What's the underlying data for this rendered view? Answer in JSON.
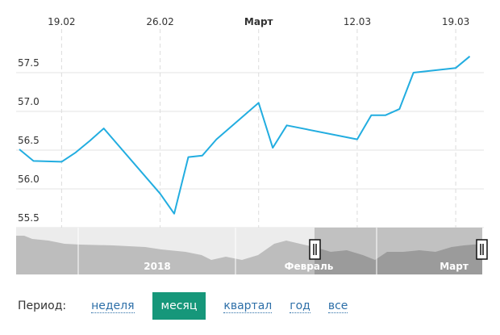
{
  "chart_data": {
    "type": "line",
    "x": [
      "2018-02-16",
      "2018-02-17",
      "2018-02-19",
      "2018-02-20",
      "2018-02-21",
      "2018-02-22",
      "2018-02-26",
      "2018-02-27",
      "2018-02-28",
      "2018-03-01",
      "2018-03-02",
      "2018-03-05",
      "2018-03-06",
      "2018-03-07",
      "2018-03-12",
      "2018-03-13",
      "2018-03-14",
      "2018-03-15",
      "2018-03-16",
      "2018-03-19",
      "2018-03-20"
    ],
    "series": [
      {
        "color": "#22ade0",
        "values": [
          56.51,
          56.36,
          56.35,
          56.47,
          56.62,
          56.78,
          55.94,
          55.68,
          56.41,
          56.43,
          56.64,
          57.11,
          56.53,
          56.82,
          56.64,
          56.95,
          56.95,
          57.03,
          57.5,
          57.56,
          57.71
        ]
      }
    ],
    "xlim": [
      "2018-02-16",
      "2018-03-21"
    ],
    "xticks": [
      {
        "value": "2018-02-19",
        "label": "19.02"
      },
      {
        "value": "2018-02-26",
        "label": "26.02"
      },
      {
        "value": "2018-03-05",
        "label": "Март"
      },
      {
        "value": "2018-03-12",
        "label": "12.03"
      },
      {
        "value": "2018-03-19",
        "label": "19.03"
      }
    ],
    "ylim": [
      55.5,
      58.0
    ],
    "yticks": [
      55.5,
      {
        "value": 56,
        "label": "56.0"
      },
      56.5,
      {
        "value": 57,
        "label": "57.0"
      },
      57.5
    ],
    "grid": true
  },
  "navigator": {
    "labels": [
      "2018",
      "Февраль",
      "Март"
    ]
  },
  "period": {
    "label": "Период:",
    "options": [
      "неделя",
      "месяц",
      "квартал",
      "год",
      "все"
    ],
    "selected": 1
  }
}
